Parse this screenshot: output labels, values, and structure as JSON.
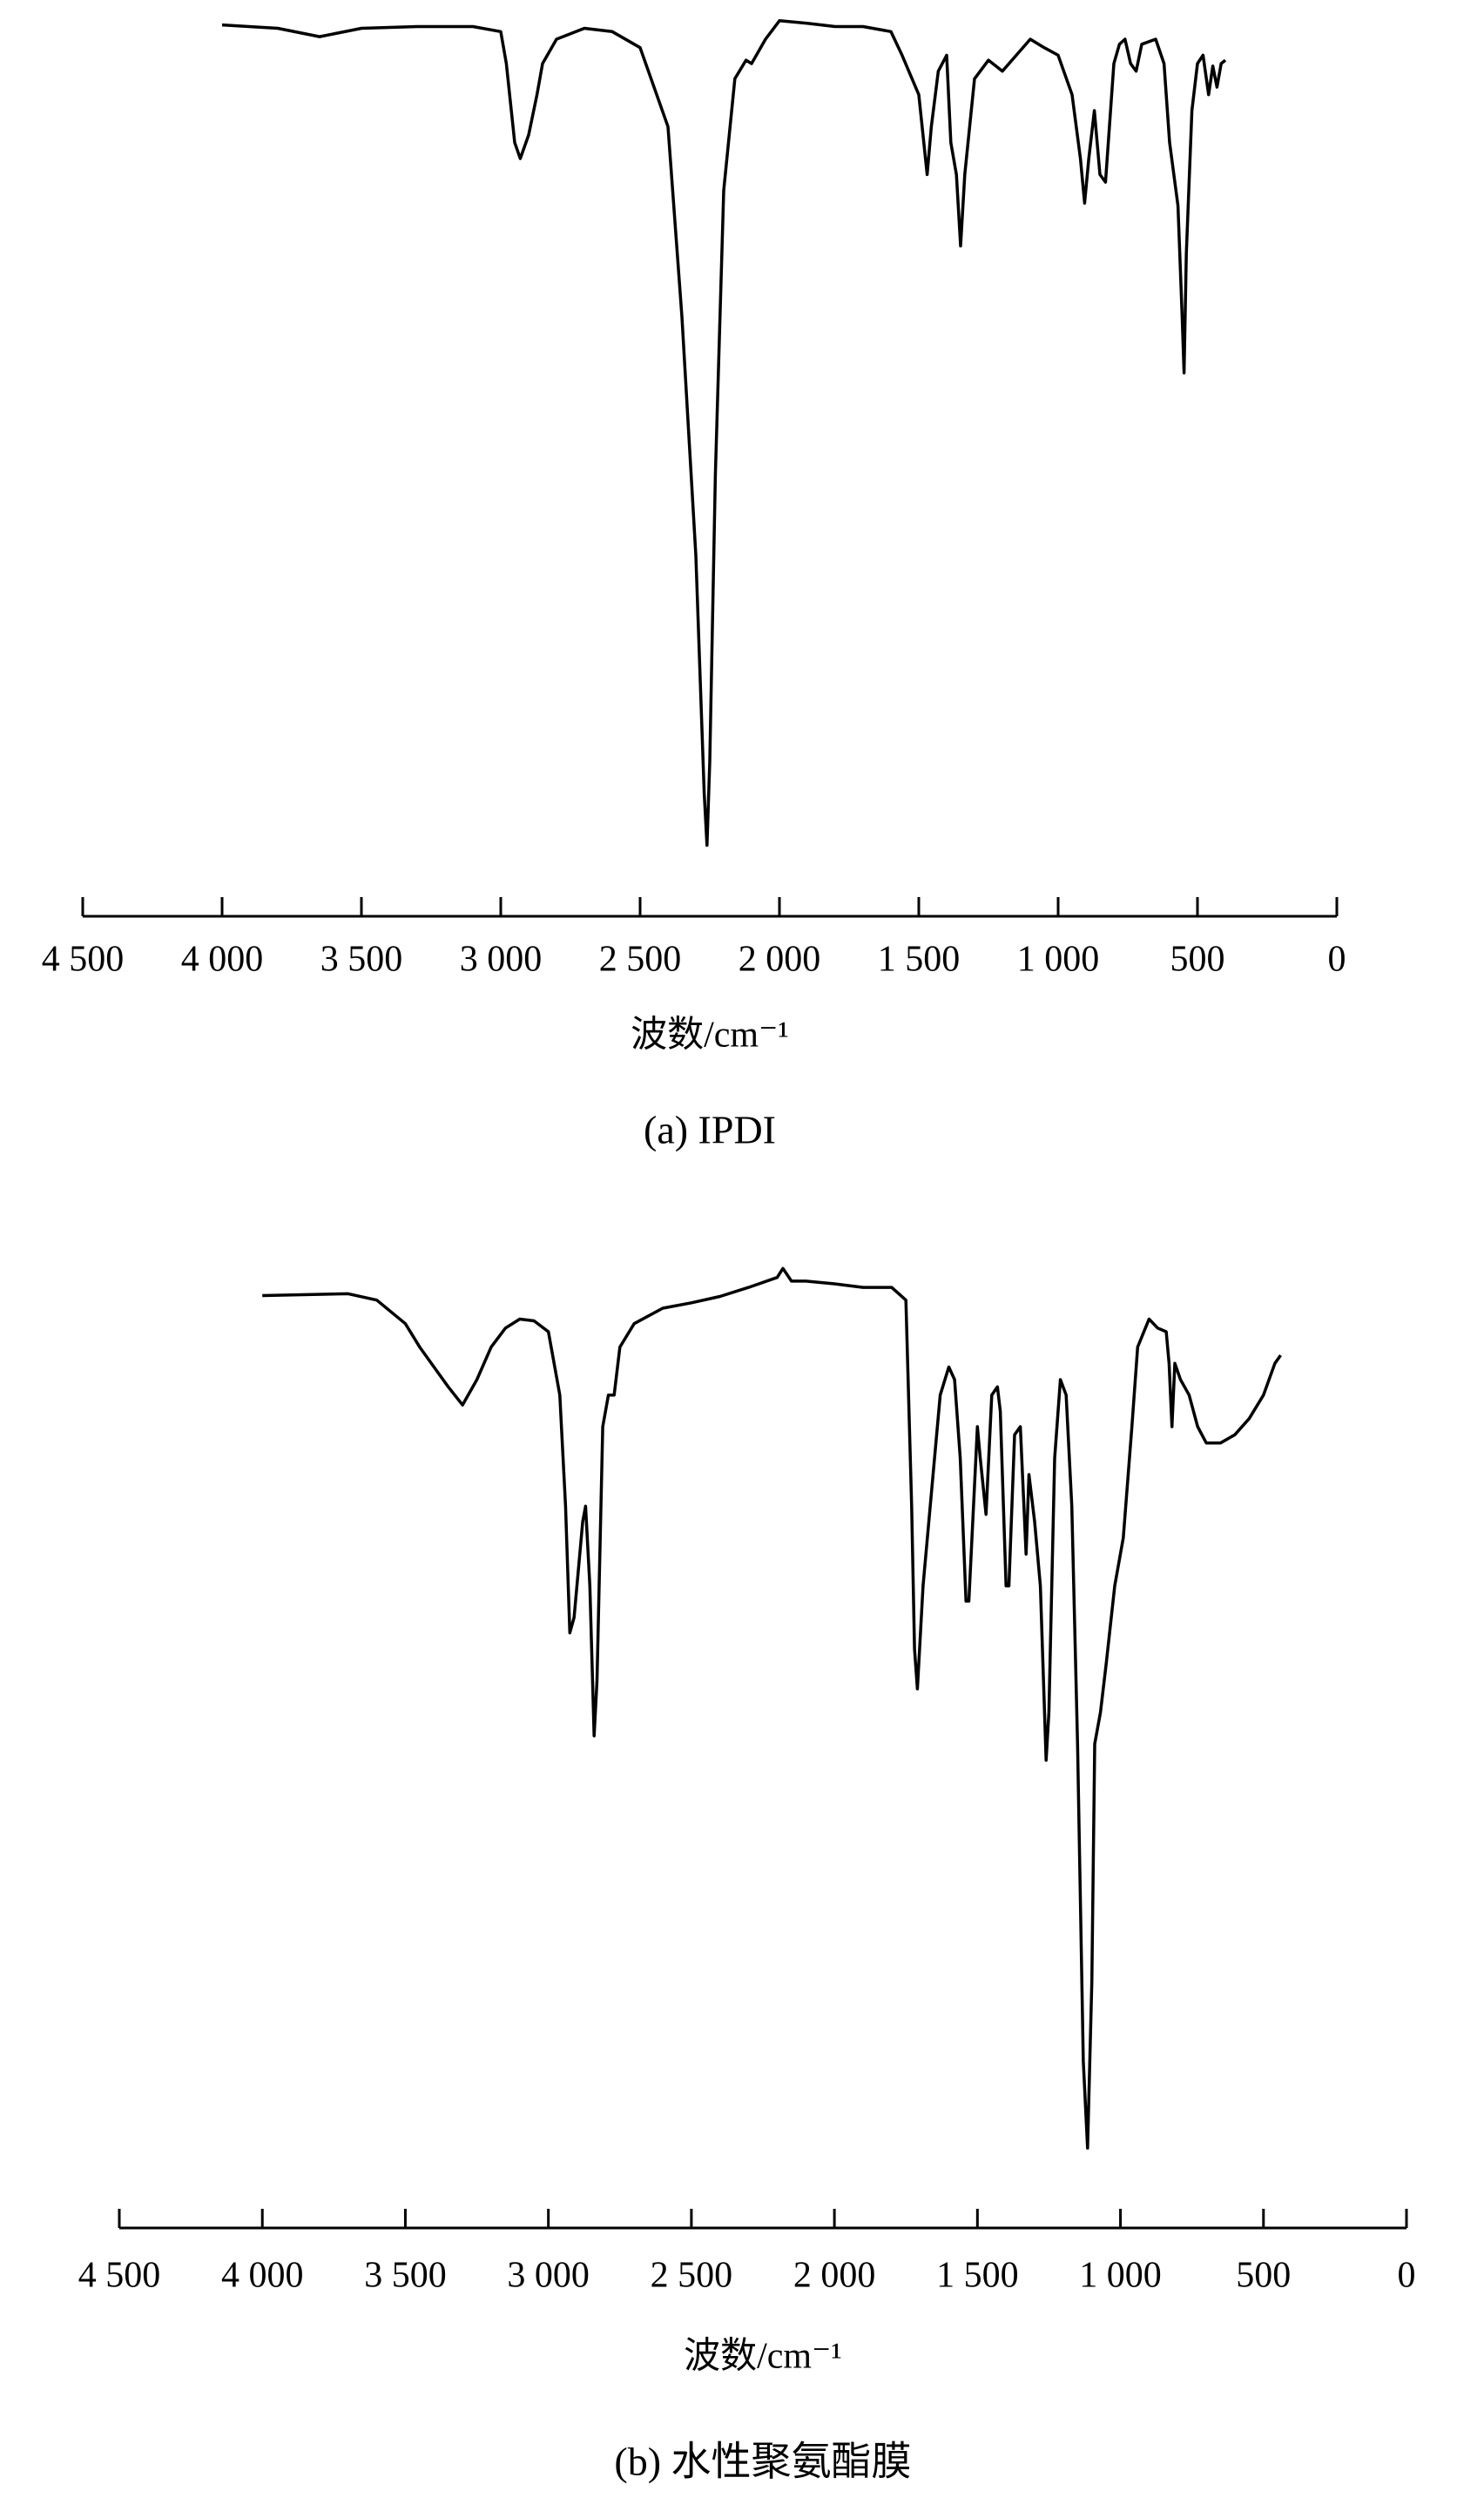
{
  "chart_data": [
    {
      "type": "line",
      "caption": "(a) IPDI",
      "x_label": "波数/cm⁻¹",
      "xlim": [
        4500,
        0
      ],
      "ylim": [
        0,
        100
      ],
      "xticks": [
        {
          "value": 4500,
          "label": "4 500"
        },
        {
          "value": 4000,
          "label": "4 000"
        },
        {
          "value": 3500,
          "label": "3 500"
        },
        {
          "value": 3000,
          "label": "3 000"
        },
        {
          "value": 2500,
          "label": "2 500"
        },
        {
          "value": 2000,
          "label": "2 000"
        },
        {
          "value": 1500,
          "label": "1 500"
        },
        {
          "value": 1000,
          "label": "1 000"
        },
        500,
        0
      ],
      "series": [
        {
          "color": "#000000",
          "x": [
            4000,
            3800,
            3650,
            3500,
            3300,
            3100,
            3000,
            2980,
            2950,
            2930,
            2900,
            2870,
            2850,
            2800,
            2700,
            2600,
            2500,
            2400,
            2350,
            2300,
            2270,
            2260,
            2250,
            2230,
            2200,
            2160,
            2120,
            2100,
            2050,
            2000,
            1900,
            1800,
            1700,
            1600,
            1560,
            1500,
            1470,
            1455,
            1430,
            1400,
            1385,
            1365,
            1350,
            1335,
            1300,
            1250,
            1200,
            1150,
            1100,
            1050,
            1000,
            950,
            920,
            905,
            890,
            870,
            850,
            830,
            800,
            780,
            760,
            740,
            720,
            700,
            650,
            620,
            600,
            570,
            555,
            548,
            540,
            520,
            500,
            480,
            460,
            445,
            430,
            415,
            400
          ],
          "values": [
            98.9,
            98.5,
            97.5,
            98.5,
            98.7,
            98.7,
            98.1,
            94.3,
            84.9,
            83.0,
            85.8,
            90.6,
            94.3,
            97.2,
            98.5,
            98.1,
            96.2,
            86.8,
            64.2,
            35.8,
            7.5,
            1.3,
            11.3,
            45.3,
            79.2,
            92.5,
            94.7,
            94.3,
            97.2,
            99.4,
            99.1,
            98.7,
            98.7,
            98.1,
            95.3,
            90.6,
            81.1,
            86.8,
            93.4,
            95.3,
            84.9,
            81.1,
            72.6,
            81.1,
            92.5,
            94.7,
            93.4,
            95.3,
            97.2,
            96.2,
            95.3,
            90.6,
            83.0,
            77.7,
            83.0,
            88.7,
            81.1,
            80.2,
            94.3,
            96.6,
            97.2,
            94.3,
            93.4,
            96.6,
            97.2,
            94.3,
            84.9,
            77.4,
            64.2,
            57.5,
            71.7,
            88.7,
            94.3,
            95.3,
            90.6,
            94.0,
            91.5,
            94.3,
            94.7
          ]
        }
      ]
    },
    {
      "type": "line",
      "caption": "(b) 水性聚氨酯膜",
      "x_label": "波数/cm⁻¹",
      "xlim": [
        4500,
        0
      ],
      "ylim": [
        0,
        100
      ],
      "xticks": [
        {
          "value": 4500,
          "label": "4 500"
        },
        {
          "value": 4000,
          "label": "4 000"
        },
        {
          "value": 3500,
          "label": "3 500"
        },
        {
          "value": 3000,
          "label": "3 000"
        },
        {
          "value": 2500,
          "label": "2 500"
        },
        {
          "value": 2000,
          "label": "2 000"
        },
        {
          "value": 1500,
          "label": "1 500"
        },
        {
          "value": 1000,
          "label": "1 000"
        },
        500,
        0
      ],
      "series": [
        {
          "color": "#000000",
          "x": [
            4000,
            3700,
            3600,
            3500,
            3450,
            3400,
            3350,
            3300,
            3250,
            3200,
            3150,
            3100,
            3050,
            3000,
            2960,
            2940,
            2925,
            2910,
            2880,
            2870,
            2855,
            2840,
            2830,
            2810,
            2790,
            2770,
            2750,
            2700,
            2600,
            2500,
            2400,
            2300,
            2200,
            2180,
            2150,
            2100,
            2000,
            1900,
            1800,
            1750,
            1730,
            1720,
            1710,
            1690,
            1660,
            1630,
            1600,
            1580,
            1560,
            1540,
            1530,
            1500,
            1490,
            1470,
            1450,
            1430,
            1420,
            1400,
            1390,
            1370,
            1350,
            1330,
            1320,
            1300,
            1280,
            1260,
            1250,
            1230,
            1210,
            1190,
            1170,
            1150,
            1130,
            1115,
            1100,
            1090,
            1070,
            1050,
            1020,
            990,
            960,
            940,
            900,
            870,
            840,
            830,
            820,
            810,
            790,
            760,
            730,
            700,
            650,
            600,
            550,
            500,
            460,
            440
          ],
          "values": [
            96.1,
            96.3,
            95.6,
            93.0,
            90.4,
            88.2,
            86.0,
            84.0,
            86.8,
            90.4,
            92.5,
            93.5,
            93.3,
            92.1,
            85.1,
            72.8,
            58.8,
            60.5,
            71.1,
            72.8,
            64.0,
            47.4,
            53.5,
            81.6,
            85.1,
            85.1,
            90.4,
            93.0,
            94.7,
            95.3,
            96.0,
            97.0,
            98.1,
            99.1,
            97.7,
            97.7,
            97.4,
            97.0,
            97.0,
            95.6,
            72.8,
            57.0,
            52.6,
            64.0,
            74.6,
            85.1,
            88.2,
            86.8,
            78.1,
            62.3,
            62.3,
            81.6,
            78.1,
            71.9,
            85.1,
            86.0,
            83.3,
            64.0,
            64.0,
            80.7,
            81.6,
            67.5,
            76.3,
            71.1,
            64.0,
            44.7,
            50.0,
            78.1,
            86.8,
            85.1,
            72.8,
            46.5,
            11.4,
            1.8,
            20.2,
            46.5,
            50.0,
            55.3,
            64.0,
            69.3,
            81.6,
            90.4,
            93.5,
            92.5,
            92.1,
            88.6,
            81.6,
            88.6,
            86.8,
            85.1,
            81.6,
            79.8,
            79.8,
            80.7,
            82.5,
            85.1,
            88.6,
            89.5
          ]
        }
      ]
    }
  ]
}
